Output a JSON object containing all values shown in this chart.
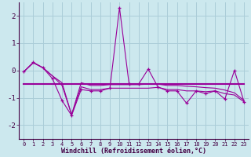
{
  "x": [
    0,
    1,
    2,
    3,
    4,
    5,
    6,
    7,
    8,
    9,
    10,
    11,
    12,
    13,
    14,
    15,
    16,
    17,
    18,
    19,
    20,
    21,
    22,
    23
  ],
  "y_main": [
    -0.05,
    0.3,
    0.1,
    -0.3,
    -1.1,
    -1.65,
    -0.7,
    -0.75,
    -0.75,
    -0.65,
    2.3,
    -0.5,
    -0.5,
    0.05,
    -0.6,
    -0.75,
    -0.75,
    -1.2,
    -0.75,
    -0.85,
    -0.75,
    -1.05,
    0.0,
    -1.15
  ],
  "y_upper": [
    -0.05,
    0.28,
    0.1,
    -0.2,
    -0.45,
    -1.62,
    -0.45,
    -0.55,
    -0.55,
    -0.52,
    -0.52,
    -0.52,
    -0.52,
    -0.5,
    -0.5,
    -0.55,
    -0.55,
    -0.58,
    -0.6,
    -0.63,
    -0.65,
    -0.72,
    -0.82,
    -1.1
  ],
  "y_lower": [
    -0.05,
    0.28,
    0.1,
    -0.2,
    -0.55,
    -1.62,
    -0.6,
    -0.7,
    -0.7,
    -0.65,
    -0.65,
    -0.65,
    -0.65,
    -0.65,
    -0.62,
    -0.7,
    -0.7,
    -0.75,
    -0.75,
    -0.78,
    -0.75,
    -0.85,
    -0.9,
    -1.15
  ],
  "y_trend": [
    -0.5,
    -0.5,
    -0.5,
    -0.5,
    -0.5,
    -0.5,
    -0.5,
    -0.5,
    -0.5,
    -0.5,
    -0.5,
    -0.5,
    -0.5,
    -0.5,
    -0.5,
    -0.5,
    -0.5,
    -0.5,
    -0.5,
    -0.5,
    -0.5,
    -0.5,
    -0.5,
    -0.5
  ],
  "line_color": "#990099",
  "bg_color": "#cce8ee",
  "grid_color": "#aacdd8",
  "xlabel": "Windchill (Refroidissement éolien,°C)",
  "ylim": [
    -2.5,
    2.5
  ],
  "xlim": [
    -0.5,
    23.5
  ],
  "yticks": [
    -2,
    -1,
    0,
    1,
    2
  ],
  "xticks": [
    0,
    1,
    2,
    3,
    4,
    5,
    6,
    7,
    8,
    9,
    10,
    11,
    12,
    13,
    14,
    15,
    16,
    17,
    18,
    19,
    20,
    21,
    22,
    23
  ]
}
